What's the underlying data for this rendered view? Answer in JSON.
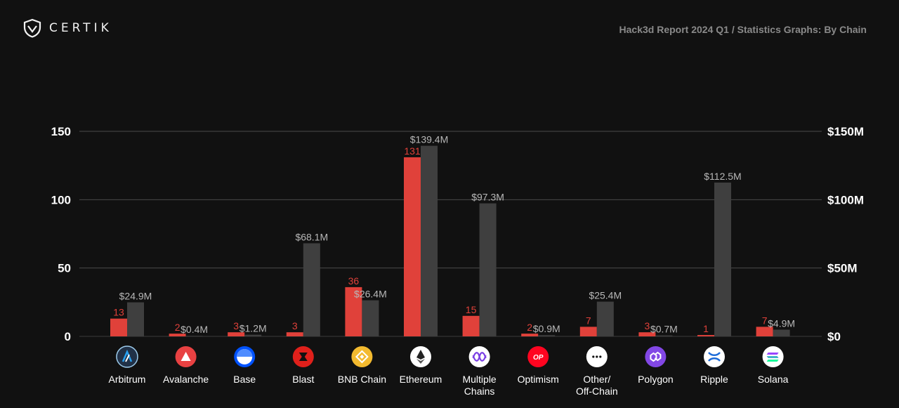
{
  "brand": {
    "name": "CERTIK",
    "icon": "shield-logo-icon"
  },
  "header": {
    "report": "Hack3d Report 2024 Q1",
    "separator": " / ",
    "section": "Statistics Graphs: By Chain"
  },
  "colors": {
    "incidents": "#e0413a",
    "losses": "#3f3f3f",
    "background": "#111111"
  },
  "chart_data": {
    "type": "bar",
    "categories": [
      "Arbitrum",
      "Avalanche",
      "Base",
      "Blast",
      "BNB Chain",
      "Ethereum",
      "Multiple\nChains",
      "Optimism",
      "Other/\nOff-Chain",
      "Polygon",
      "Ripple",
      "Solana"
    ],
    "category_icons": [
      "arbitrum-icon",
      "avalanche-icon",
      "base-icon",
      "blast-icon",
      "bnb-chain-icon",
      "ethereum-icon",
      "multiple-chains-icon",
      "optimism-icon",
      "other-icon",
      "polygon-icon",
      "ripple-icon",
      "solana-icon"
    ],
    "series": [
      {
        "values": [
          13,
          2,
          3,
          3,
          36,
          131,
          15,
          2,
          7,
          3,
          1,
          7
        ],
        "labels": [
          "13",
          "2",
          "3",
          "3",
          "36",
          "131",
          "15",
          "2",
          "7",
          "3",
          "1",
          "7"
        ],
        "axis": "left"
      },
      {
        "values": [
          24.9,
          0.4,
          1.2,
          68.1,
          26.4,
          139.4,
          97.3,
          0.9,
          25.4,
          0.7,
          112.5,
          4.9
        ],
        "labels": [
          "$24.9M",
          "$0.4M",
          "$1.2M",
          "$68.1M",
          "$26.4M",
          "$139.4M",
          "$97.3M",
          "$0.9M",
          "$25.4M",
          "$0.7M",
          "$112.5M",
          "$4.9M"
        ],
        "axis": "right"
      }
    ],
    "y_left": {
      "ticks": [
        0,
        50,
        100,
        150
      ],
      "tick_labels": [
        "0",
        "50",
        "100",
        "150"
      ],
      "range": [
        0,
        150
      ]
    },
    "y_right": {
      "ticks": [
        0,
        50,
        100,
        150
      ],
      "tick_labels": [
        "$0",
        "$50M",
        "$100M",
        "$150M"
      ],
      "range": [
        0,
        150
      ]
    },
    "grid": true
  }
}
